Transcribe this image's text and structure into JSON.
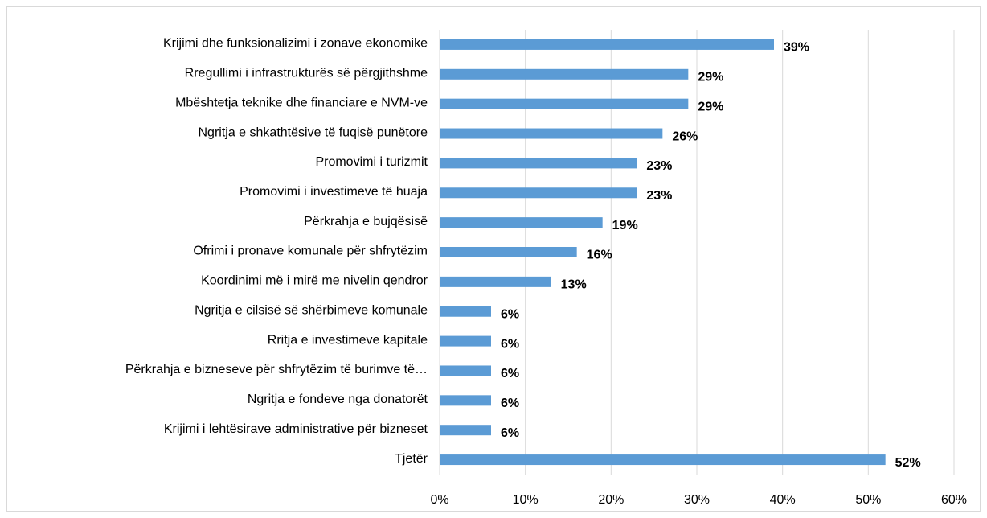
{
  "chart_data": {
    "type": "hbar",
    "categories": [
      "Krijimi dhe funksionalizimi i zonave ekonomike",
      "Rregullimi i infrastrukturës së përgjithshme",
      "Mbështetja teknike dhe financiare e NVM-ve",
      "Ngritja e shkathtësive të fuqisë punëtore",
      "Promovimi i turizmit",
      "Promovimi i investimeve të huaja",
      "Përkrahja e bujqësisë",
      "Ofrimi i pronave komunale për shfrytëzim",
      "Koordinimi më i mirë me nivelin qendror",
      "Ngritja e cilsisë së shërbimeve komunale",
      "Rritja e investimeve kapitale",
      "Përkrahja e bizneseve për shfrytëzim të burimve të…",
      "Ngritja e fondeve nga donatorët",
      "Krijimi i lehtësirave administrative për bizneset",
      "Tjetër"
    ],
    "values": [
      39,
      29,
      29,
      26,
      23,
      23,
      19,
      16,
      13,
      6,
      6,
      6,
      6,
      6,
      52
    ],
    "value_labels": [
      "39%",
      "29%",
      "29%",
      "26%",
      "23%",
      "23%",
      "19%",
      "16%",
      "13%",
      "6%",
      "6%",
      "6%",
      "6%",
      "6%",
      "52%"
    ],
    "color": "#5b9bd5",
    "xlim": [
      0,
      60
    ],
    "xticks": [
      {
        "value": 0,
        "label": "0%"
      },
      {
        "value": 10,
        "label": "10%"
      },
      {
        "value": 20,
        "label": "20%"
      },
      {
        "value": 30,
        "label": "30%"
      },
      {
        "value": 40,
        "label": "40%"
      },
      {
        "value": 50,
        "label": "50%"
      },
      {
        "value": 60,
        "label": "60%"
      }
    ],
    "grid": true
  }
}
